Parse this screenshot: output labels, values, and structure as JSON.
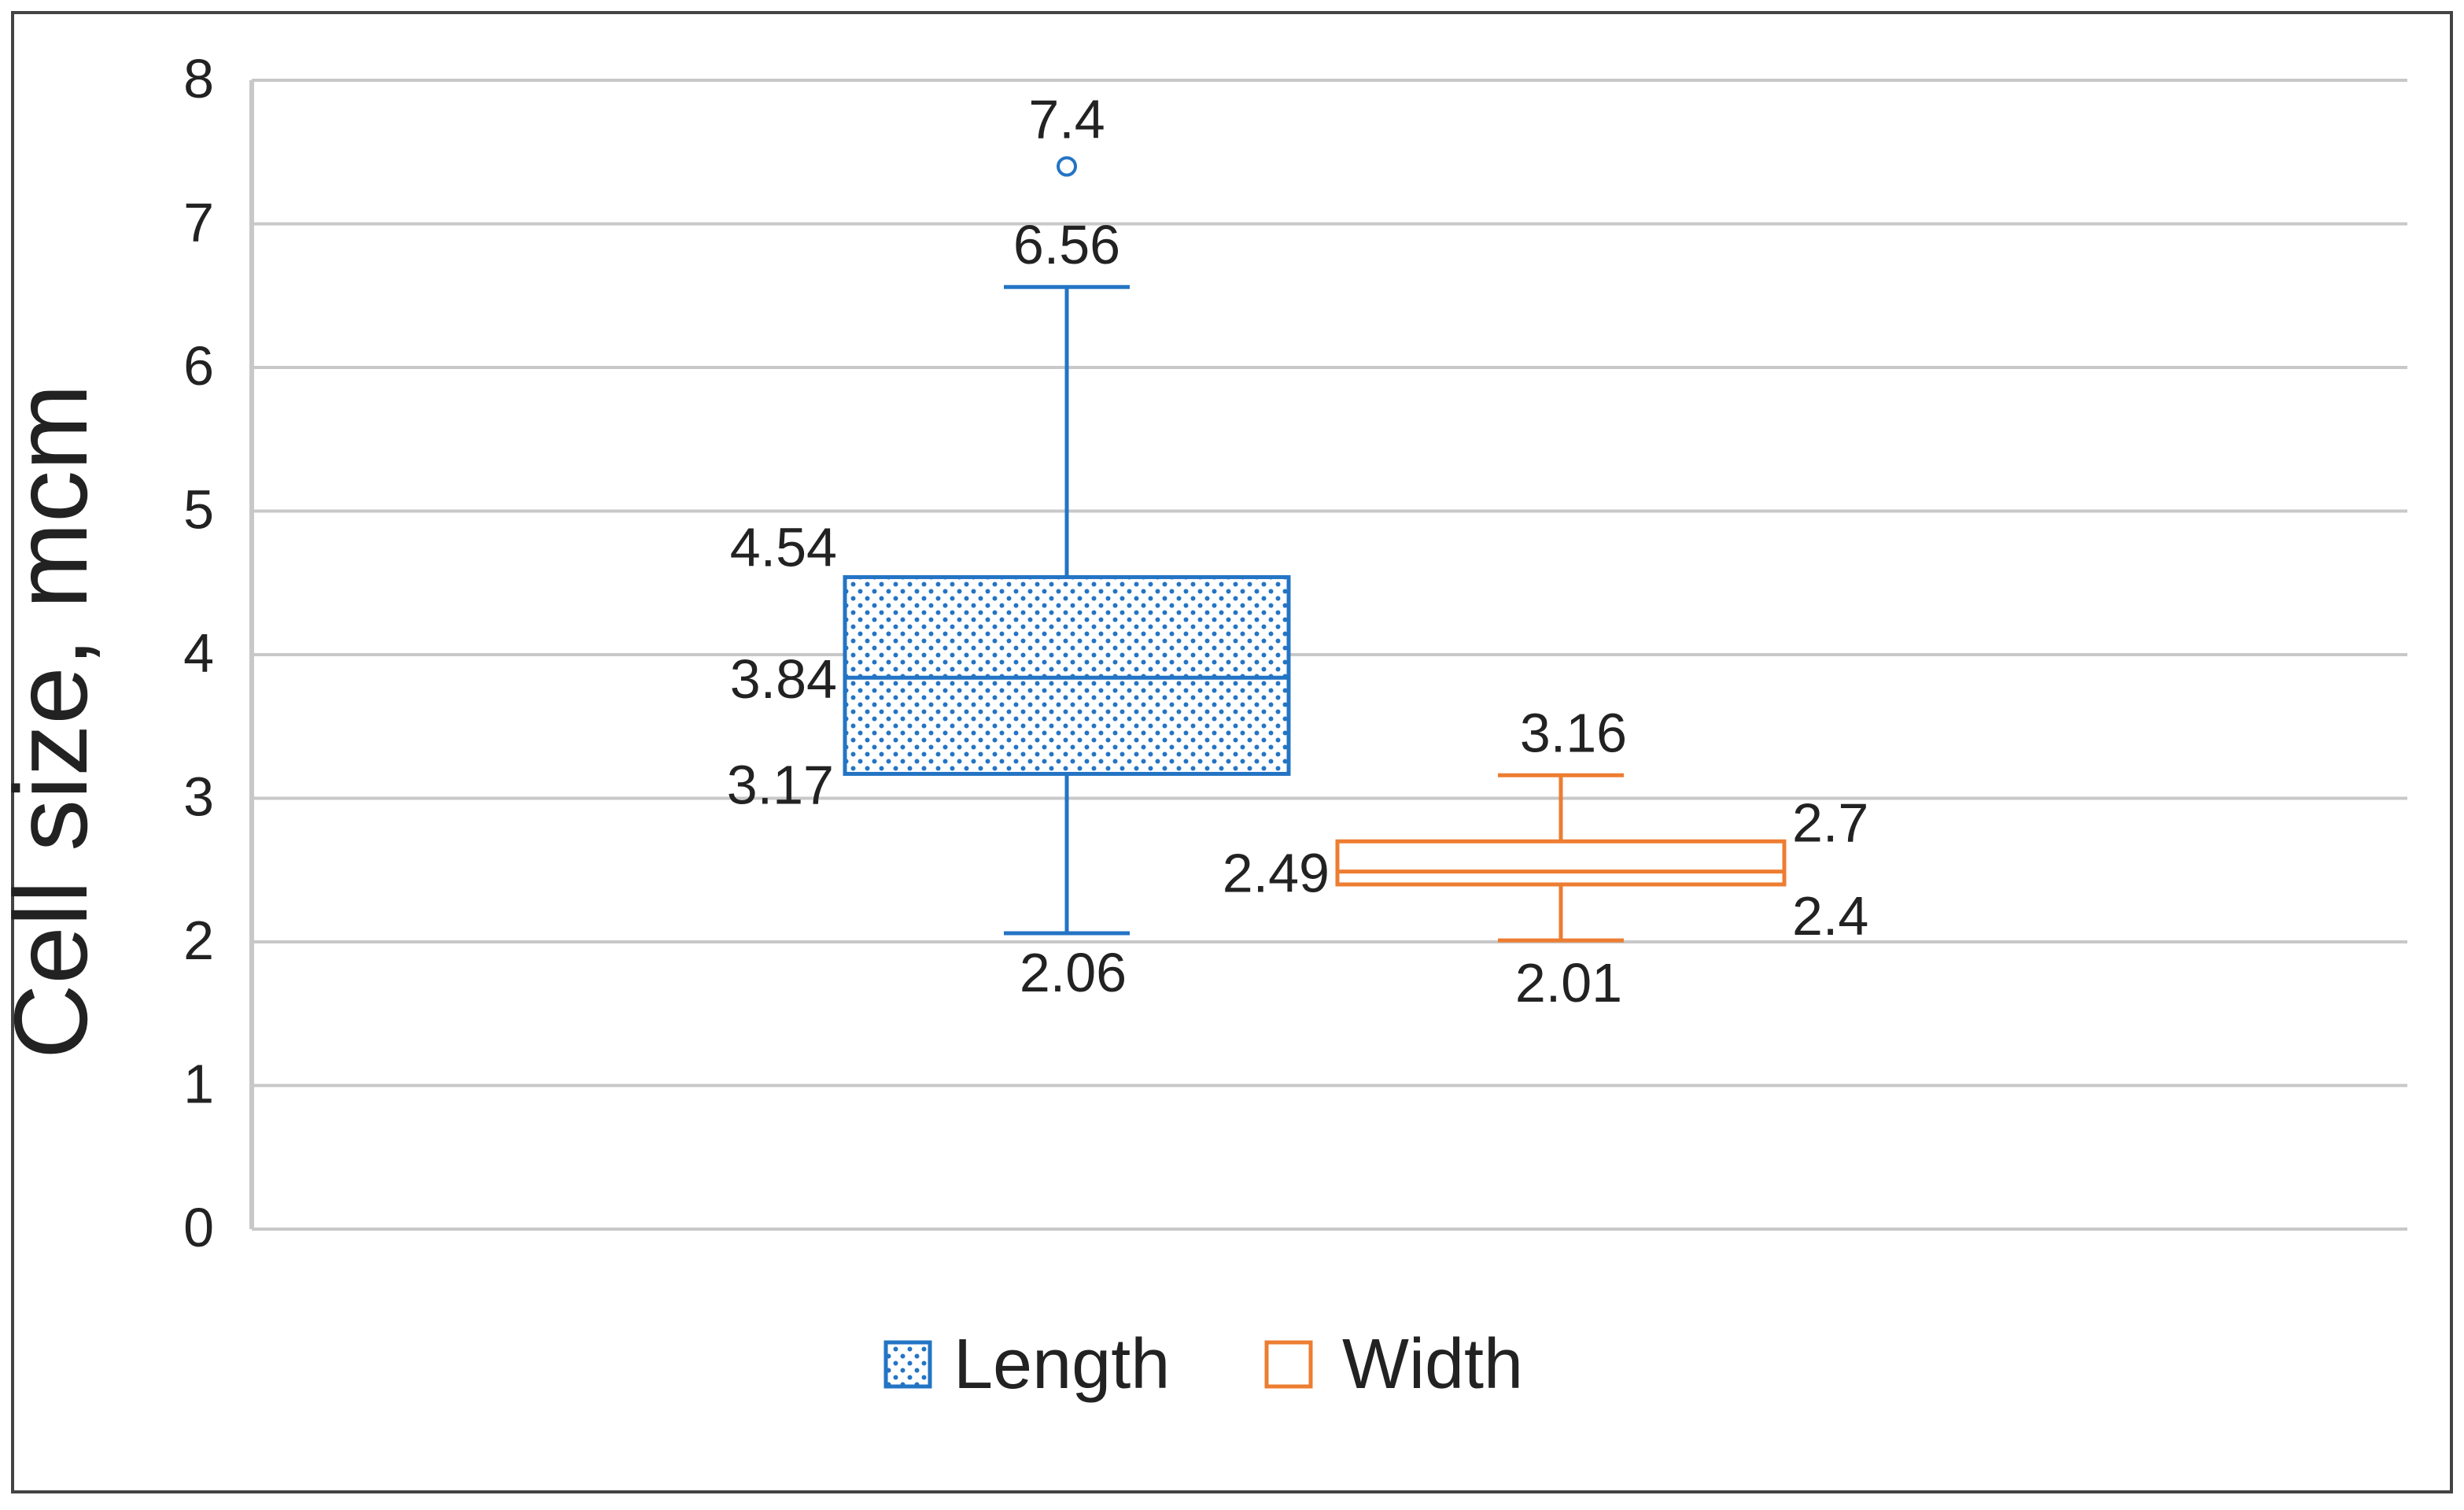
{
  "chart_data": {
    "type": "box",
    "ylabel": "Cell size, mcm",
    "ylim": [
      0,
      8
    ],
    "yticks": [
      0,
      1,
      2,
      3,
      4,
      5,
      6,
      7,
      8
    ],
    "grid": true,
    "legend_position": "bottom",
    "series": [
      {
        "name": "Length",
        "color": "#2474C4",
        "fill": "dotted",
        "whisker_low": 2.06,
        "q1": 3.17,
        "median": 3.84,
        "q3": 4.54,
        "whisker_high": 6.56,
        "outliers": [
          7.4
        ],
        "labels": {
          "whisker_low": "2.06",
          "q1": "3.17",
          "median": "3.84",
          "q3": "4.54",
          "whisker_high": "6.56",
          "outliers": [
            "7.4"
          ]
        }
      },
      {
        "name": "Width",
        "color": "#ED7D31",
        "fill": "none",
        "whisker_low": 2.01,
        "q1": 2.4,
        "median": 2.49,
        "q3": 2.7,
        "whisker_high": 3.16,
        "outliers": [],
        "labels": {
          "whisker_low": "2.01",
          "q1": "2.4",
          "median": "2.49",
          "q3": "2.7",
          "whisker_high": "3.16",
          "outliers": []
        }
      }
    ]
  }
}
